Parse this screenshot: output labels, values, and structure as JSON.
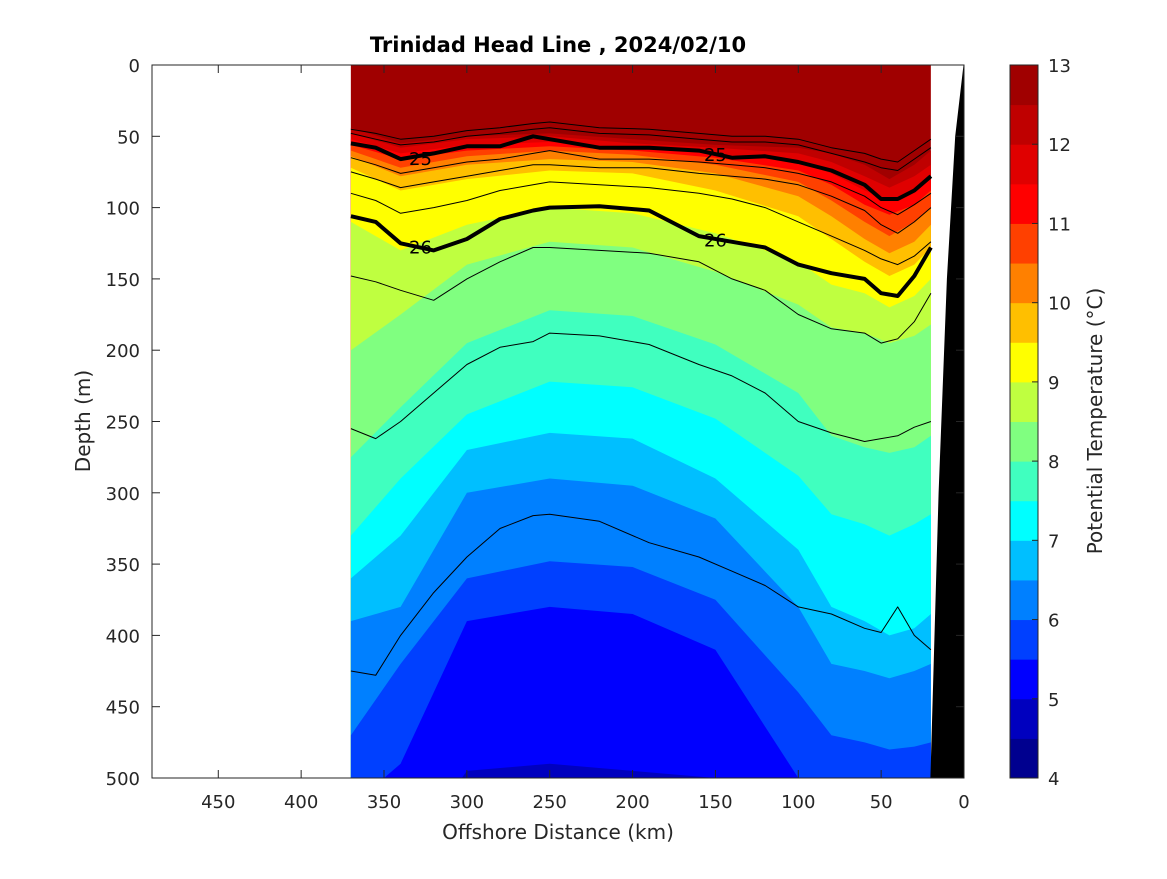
{
  "chart_data": {
    "type": "contour",
    "title": "Trinidad Head Line , 2024/02/10",
    "xlabel": "Offshore Distance (km)",
    "ylabel": "Depth (m)",
    "xlim": [
      490,
      0
    ],
    "ylim": [
      0,
      500
    ],
    "x_reversed": true,
    "y_reversed": true,
    "xticks": [
      450,
      400,
      350,
      300,
      250,
      200,
      150,
      100,
      50,
      0
    ],
    "yticks": [
      0,
      50,
      100,
      150,
      200,
      250,
      300,
      350,
      400,
      450,
      500
    ],
    "data_extent_km": [
      370,
      20
    ],
    "colorbar": {
      "label": "Potential Temperature (°C)",
      "range": [
        4,
        13
      ],
      "step": 0.5,
      "ticks": [
        4,
        5,
        6,
        7,
        8,
        9,
        10,
        11,
        12,
        13
      ],
      "colors": [
        "#00008F",
        "#0000BF",
        "#0000FF",
        "#0040FF",
        "#0080FF",
        "#00BFFF",
        "#00FFFF",
        "#40FFBF",
        "#80FF80",
        "#BFFF40",
        "#FFFF00",
        "#FFBF00",
        "#FF8000",
        "#FF4000",
        "#FF0000",
        "#E00000",
        "#BF0000",
        "#A00000"
      ]
    },
    "temperature_isotherm_depths": {
      "x": [
        370,
        340,
        300,
        250,
        200,
        150,
        100,
        80,
        60,
        45,
        30,
        20
      ],
      "t12p5": [
        44,
        55,
        50,
        48,
        52,
        56,
        58,
        62,
        70,
        80,
        70,
        60
      ],
      "t12": [
        48,
        58,
        52,
        50,
        55,
        58,
        62,
        68,
        78,
        86,
        78,
        70
      ],
      "t11p5": [
        52,
        62,
        56,
        54,
        58,
        62,
        68,
        76,
        88,
        95,
        88,
        78
      ],
      "t11": [
        56,
        66,
        60,
        57,
        60,
        65,
        74,
        84,
        98,
        105,
        98,
        88
      ],
      "t10p5": [
        60,
        72,
        64,
        60,
        63,
        70,
        82,
        95,
        110,
        120,
        110,
        100
      ],
      "t10": [
        64,
        78,
        70,
        66,
        68,
        76,
        92,
        106,
        122,
        132,
        124,
        112
      ],
      "t9p5": [
        72,
        88,
        80,
        74,
        76,
        88,
        106,
        122,
        138,
        148,
        140,
        128
      ],
      "t9": [
        110,
        130,
        112,
        100,
        104,
        118,
        138,
        154,
        160,
        170,
        162,
        150
      ],
      "t8p5": [
        200,
        175,
        140,
        124,
        128,
        145,
        168,
        184,
        188,
        195,
        190,
        182
      ],
      "t8": [
        275,
        240,
        195,
        172,
        176,
        196,
        230,
        260,
        268,
        272,
        268,
        260
      ],
      "t7p5": [
        330,
        290,
        245,
        222,
        226,
        248,
        288,
        315,
        322,
        330,
        322,
        315
      ],
      "t7": [
        360,
        330,
        270,
        258,
        262,
        290,
        340,
        380,
        390,
        400,
        395,
        385
      ],
      "t6p5": [
        390,
        380,
        300,
        290,
        295,
        318,
        380,
        420,
        425,
        430,
        425,
        420
      ],
      "t6": [
        470,
        420,
        360,
        348,
        352,
        375,
        440,
        470,
        475,
        480,
        478,
        475
      ],
      "t5p5": [
        520,
        490,
        390,
        380,
        385,
        410,
        500,
        510,
        520,
        520,
        520,
        520
      ],
      "t5": [
        560,
        560,
        495,
        490,
        495,
        500,
        540,
        560,
        560,
        560,
        560,
        560
      ]
    },
    "density_contours": {
      "x": [
        370,
        355,
        340,
        320,
        300,
        280,
        260,
        250,
        220,
        190,
        160,
        140,
        120,
        100,
        80,
        60,
        50,
        40,
        30,
        20
      ],
      "sigma_24p5": [
        45,
        48,
        52,
        50,
        46,
        44,
        41,
        40,
        44,
        45,
        48,
        50,
        50,
        52,
        58,
        62,
        66,
        68,
        60,
        52
      ],
      "sigma_24p75": [
        48,
        52,
        56,
        54,
        50,
        48,
        45,
        44,
        48,
        49,
        52,
        54,
        54,
        56,
        62,
        68,
        72,
        74,
        66,
        58
      ],
      "sigma_25": [
        55,
        58,
        66,
        62,
        57,
        57,
        50,
        52,
        58,
        58,
        60,
        65,
        64,
        68,
        74,
        84,
        94,
        94,
        88,
        78
      ],
      "sigma_25p25": [
        65,
        70,
        76,
        72,
        68,
        66,
        62,
        60,
        66,
        66,
        68,
        70,
        72,
        76,
        82,
        92,
        100,
        105,
        98,
        90
      ],
      "sigma_25p5": [
        75,
        80,
        86,
        82,
        78,
        74,
        70,
        70,
        72,
        72,
        76,
        78,
        80,
        84,
        92,
        102,
        112,
        118,
        110,
        100
      ],
      "sigma_25p75": [
        90,
        95,
        104,
        100,
        95,
        88,
        84,
        82,
        84,
        86,
        90,
        94,
        100,
        110,
        120,
        130,
        136,
        140,
        134,
        124
      ],
      "sigma_26": [
        106,
        110,
        125,
        130,
        122,
        108,
        102,
        100,
        99,
        102,
        120,
        124,
        128,
        140,
        146,
        150,
        160,
        162,
        148,
        128
      ],
      "sigma_26p25": [
        148,
        152,
        158,
        165,
        150,
        138,
        128,
        128,
        130,
        132,
        138,
        150,
        158,
        175,
        185,
        188,
        195,
        192,
        180,
        160
      ],
      "sigma_26p5": [
        255,
        262,
        250,
        230,
        210,
        198,
        194,
        188,
        190,
        196,
        210,
        218,
        230,
        250,
        258,
        264,
        262,
        260,
        254,
        250
      ],
      "sigma_26p75": [
        425,
        428,
        400,
        370,
        345,
        325,
        316,
        315,
        320,
        335,
        345,
        355,
        365,
        380,
        385,
        395,
        398,
        380,
        400,
        410
      ]
    },
    "contour_labels": [
      {
        "text": "25",
        "x": 328,
        "y": 66
      },
      {
        "text": "25",
        "x": 150,
        "y": 63
      },
      {
        "text": "26",
        "x": 328,
        "y": 128
      },
      {
        "text": "26",
        "x": 150,
        "y": 123
      }
    ],
    "bottom_topography": {
      "x": [
        20,
        15,
        10,
        5,
        0,
        0,
        20
      ],
      "y": [
        500,
        300,
        150,
        50,
        0,
        500,
        500
      ]
    }
  }
}
